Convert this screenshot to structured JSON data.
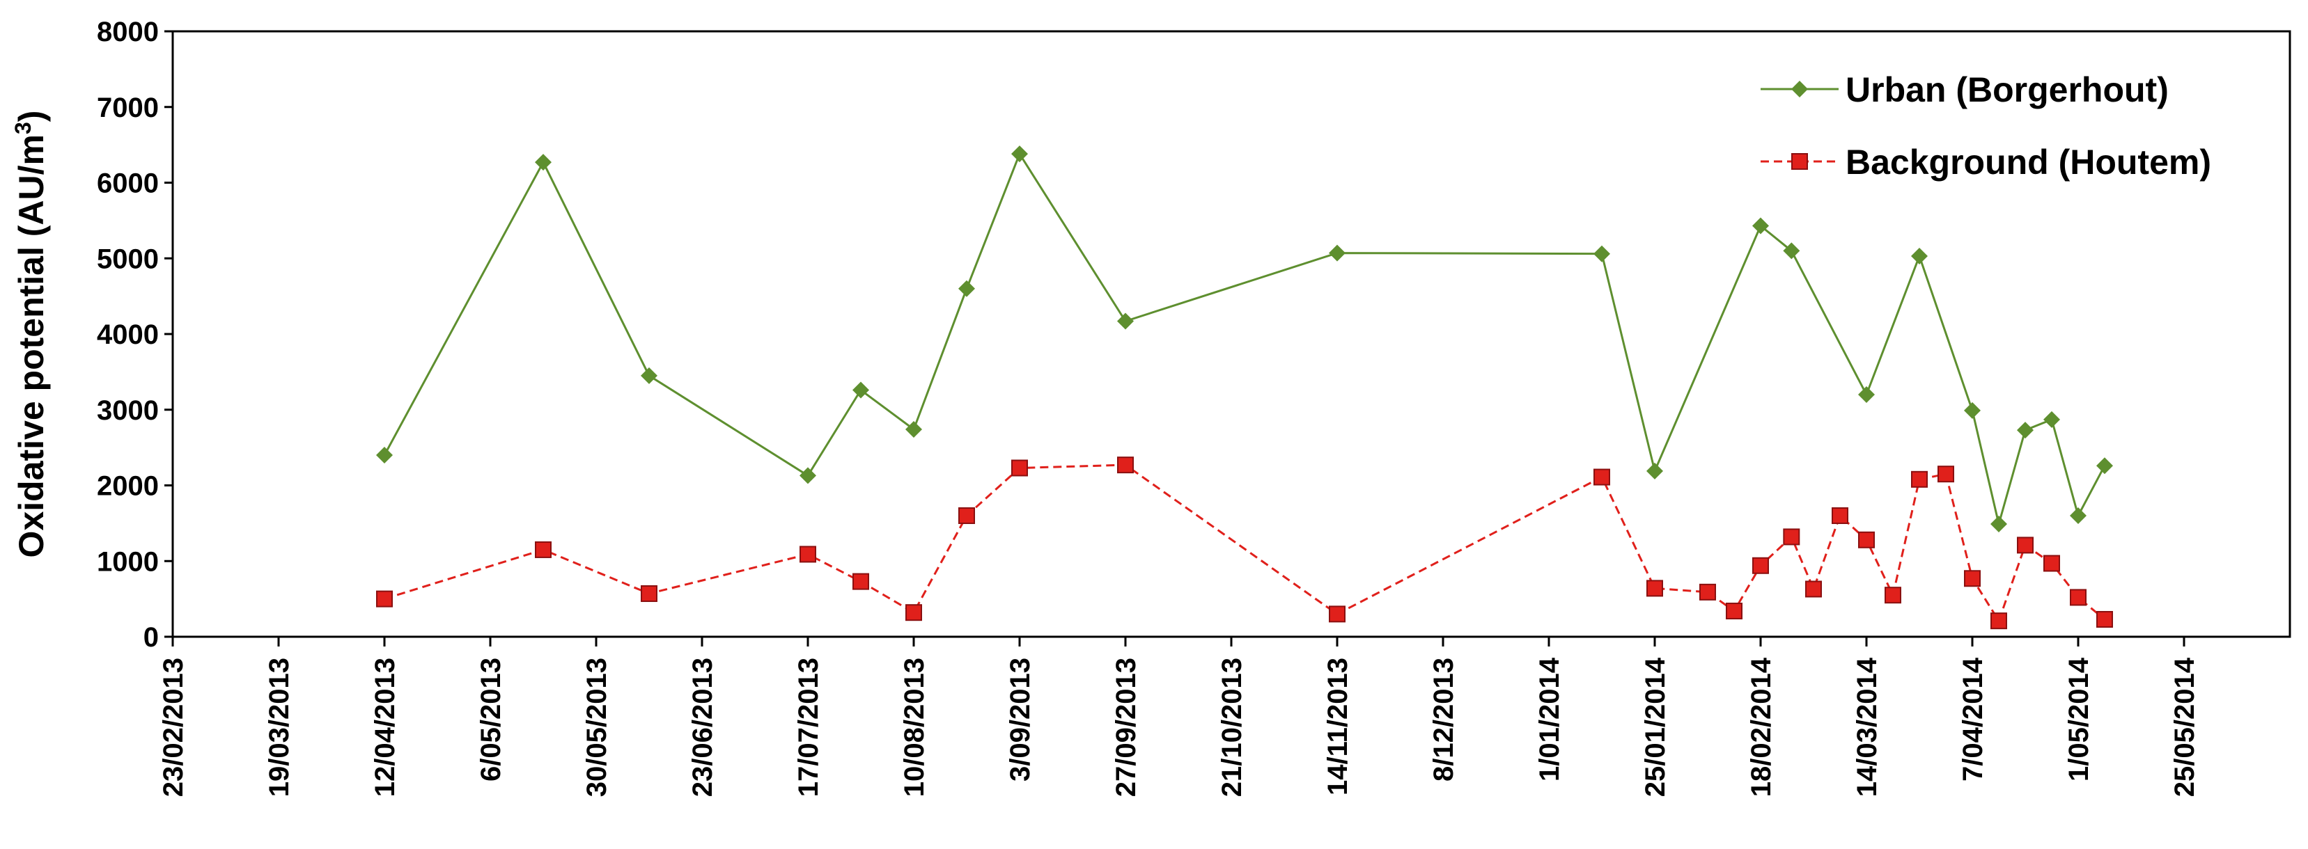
{
  "chart_data": {
    "type": "line",
    "title": "",
    "xlabel": "",
    "ylabel": "Oxidative potential (AU/m",
    "ylabel_superscript": "3",
    "ylabel_suffix": ")",
    "ylim": [
      0,
      8000
    ],
    "yticks": [
      0,
      1000,
      2000,
      3000,
      4000,
      5000,
      6000,
      7000,
      8000
    ],
    "xlim": [
      "2013-02-23",
      "2014-06-18"
    ],
    "xtick_labels": [
      "23/02/2013",
      "19/03/2013",
      "12/04/2013",
      "6/05/2013",
      "30/05/2013",
      "23/06/2013",
      "17/07/2013",
      "10/08/2013",
      "3/09/2013",
      "27/09/2013",
      "21/10/2013",
      "14/11/2013",
      "8/12/2013",
      "1/01/2014",
      "25/01/2014",
      "18/02/2014",
      "14/03/2014",
      "7/04/2014",
      "1/05/2014",
      "25/05/2014"
    ],
    "xtick_dates": [
      "2013-02-23",
      "2013-03-19",
      "2013-04-12",
      "2013-05-06",
      "2013-05-30",
      "2013-06-23",
      "2013-07-17",
      "2013-08-10",
      "2013-09-03",
      "2013-09-27",
      "2013-10-21",
      "2013-11-14",
      "2013-12-08",
      "2014-01-01",
      "2014-01-25",
      "2014-02-18",
      "2014-03-14",
      "2014-04-07",
      "2014-05-01",
      "2014-05-25"
    ],
    "grid": false,
    "legend_position": "top-right",
    "series": [
      {
        "name": "Urban (Borgerhout)",
        "color": "#5e8f2f",
        "marker": "diamond",
        "line_style": "solid",
        "points": [
          {
            "x": "2013-04-12",
            "y": 2400
          },
          {
            "x": "2013-05-18",
            "y": 6270
          },
          {
            "x": "2013-06-11",
            "y": 3450
          },
          {
            "x": "2013-07-17",
            "y": 2130
          },
          {
            "x": "2013-07-29",
            "y": 3260
          },
          {
            "x": "2013-08-10",
            "y": 2740
          },
          {
            "x": "2013-08-22",
            "y": 4600
          },
          {
            "x": "2013-09-03",
            "y": 6380
          },
          {
            "x": "2013-09-27",
            "y": 4170
          },
          {
            "x": "2013-11-14",
            "y": 5070
          },
          {
            "x": "2014-01-13",
            "y": 5060
          },
          {
            "x": "2014-01-25",
            "y": 2190
          },
          {
            "x": "2014-02-18",
            "y": 5430
          },
          {
            "x": "2014-02-25",
            "y": 5100
          },
          {
            "x": "2014-03-14",
            "y": 3200
          },
          {
            "x": "2014-03-26",
            "y": 5030
          },
          {
            "x": "2014-04-07",
            "y": 2990
          },
          {
            "x": "2014-04-13",
            "y": 1490
          },
          {
            "x": "2014-04-19",
            "y": 2730
          },
          {
            "x": "2014-04-25",
            "y": 2870
          },
          {
            "x": "2014-05-01",
            "y": 1600
          },
          {
            "x": "2014-05-07",
            "y": 2260
          }
        ]
      },
      {
        "name": "Background (Houtem)",
        "color": "#e0201b",
        "marker": "square",
        "line_style": "dashed",
        "points": [
          {
            "x": "2013-04-12",
            "y": 500
          },
          {
            "x": "2013-05-18",
            "y": 1150
          },
          {
            "x": "2013-06-11",
            "y": 570
          },
          {
            "x": "2013-07-17",
            "y": 1090
          },
          {
            "x": "2013-07-29",
            "y": 730
          },
          {
            "x": "2013-08-10",
            "y": 320
          },
          {
            "x": "2013-08-22",
            "y": 1600
          },
          {
            "x": "2013-09-03",
            "y": 2230
          },
          {
            "x": "2013-09-27",
            "y": 2270
          },
          {
            "x": "2013-11-14",
            "y": 300
          },
          {
            "x": "2014-01-13",
            "y": 2110
          },
          {
            "x": "2014-01-25",
            "y": 640
          },
          {
            "x": "2014-02-06",
            "y": 590
          },
          {
            "x": "2014-02-12",
            "y": 340
          },
          {
            "x": "2014-02-18",
            "y": 940
          },
          {
            "x": "2014-02-25",
            "y": 1320
          },
          {
            "x": "2014-03-02",
            "y": 630
          },
          {
            "x": "2014-03-08",
            "y": 1600
          },
          {
            "x": "2014-03-14",
            "y": 1280
          },
          {
            "x": "2014-03-20",
            "y": 550
          },
          {
            "x": "2014-03-26",
            "y": 2080
          },
          {
            "x": "2014-04-01",
            "y": 2150
          },
          {
            "x": "2014-04-07",
            "y": 770
          },
          {
            "x": "2014-04-13",
            "y": 210
          },
          {
            "x": "2014-04-19",
            "y": 1210
          },
          {
            "x": "2014-04-25",
            "y": 970
          },
          {
            "x": "2014-05-01",
            "y": 520
          },
          {
            "x": "2014-05-07",
            "y": 230
          }
        ]
      }
    ]
  }
}
